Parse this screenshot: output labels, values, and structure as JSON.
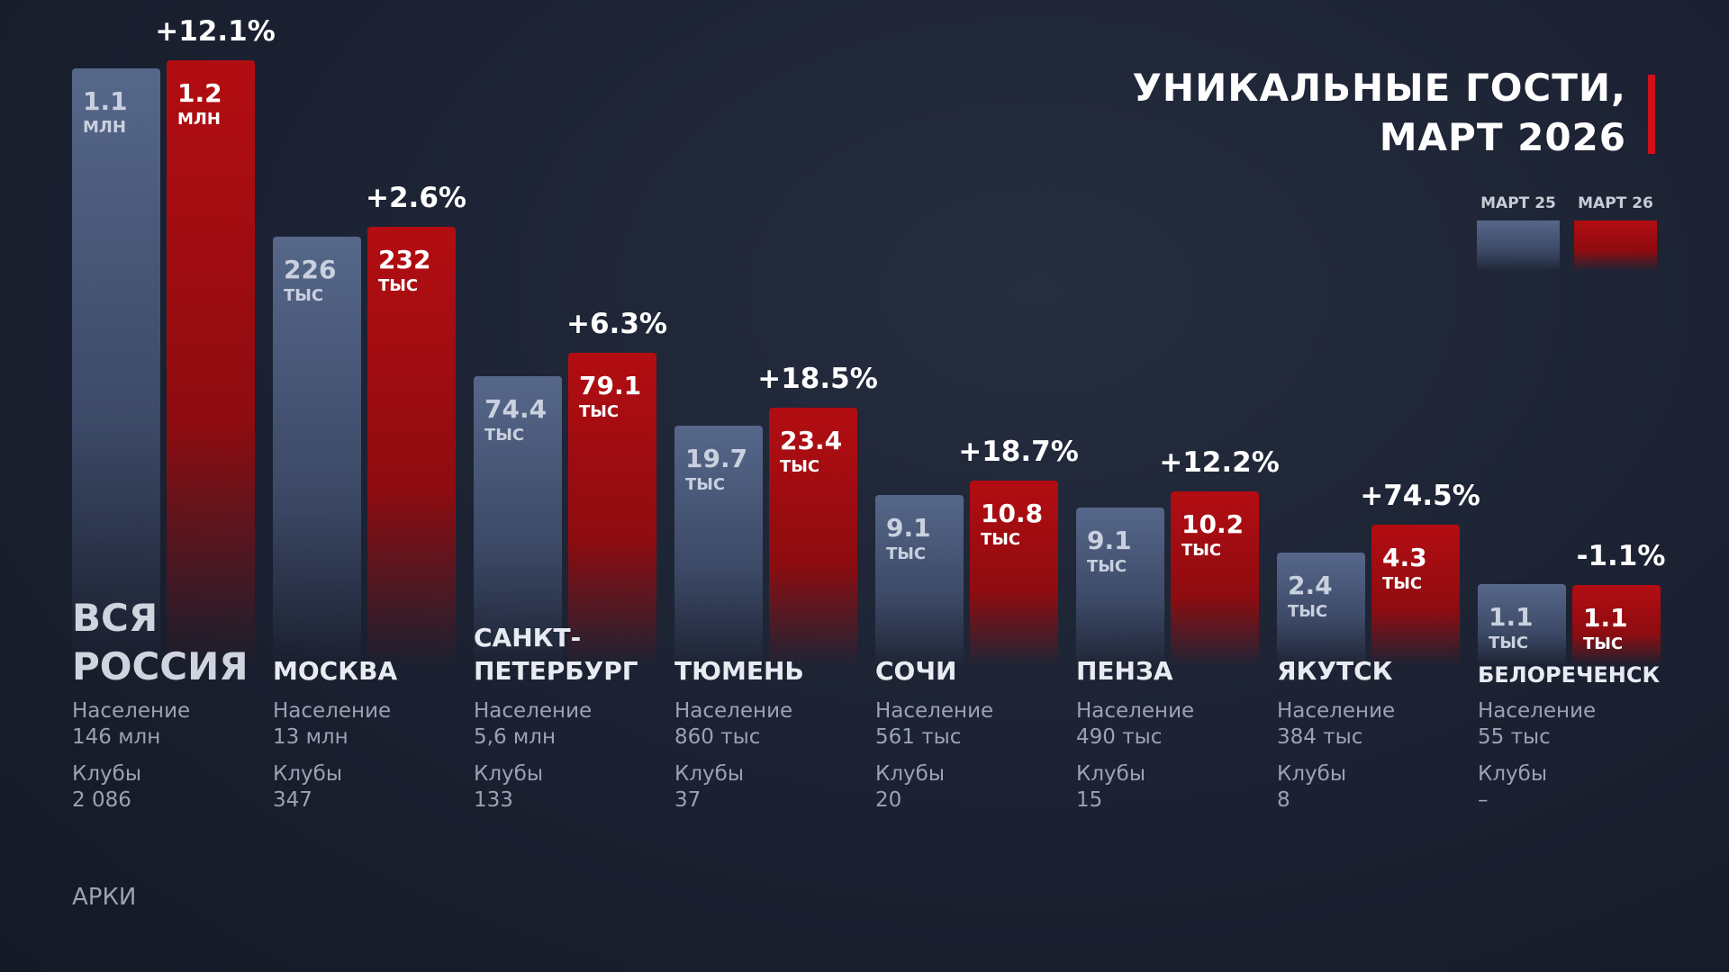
{
  "title": "УНИКАЛЬНЫЕ ГОСТИ, МАРТ 2026",
  "legend": [
    "МАРТ 25",
    "МАРТ 26"
  ],
  "labels": {
    "population": "Население",
    "clubs": "Клубы"
  },
  "footer": "АРКИ",
  "cities": [
    {
      "name": "ВСЯ РОССИЯ",
      "before": {
        "value": "1.1",
        "unit": "МЛН"
      },
      "after": {
        "value": "1.2",
        "unit": "МЛН"
      },
      "change": "+12.1%",
      "population": "146 млн",
      "clubs": "2 086"
    },
    {
      "name": "МОСКВА",
      "before": {
        "value": "226",
        "unit": "ТЫС"
      },
      "after": {
        "value": "232",
        "unit": "ТЫС"
      },
      "change": "+2.6%",
      "population": "13 млн",
      "clubs": "347"
    },
    {
      "name": "САНКТ-ПЕТЕРБУРГ",
      "before": {
        "value": "74.4",
        "unit": "ТЫС"
      },
      "after": {
        "value": "79.1",
        "unit": "ТЫС"
      },
      "change": "+6.3%",
      "population": "5,6 млн",
      "clubs": "133"
    },
    {
      "name": "ТЮМЕНЬ",
      "before": {
        "value": "19.7",
        "unit": "ТЫС"
      },
      "after": {
        "value": "23.4",
        "unit": "ТЫС"
      },
      "change": "+18.5%",
      "population": "860 тыс",
      "clubs": "37"
    },
    {
      "name": "СОЧИ",
      "before": {
        "value": "9.1",
        "unit": "ТЫС"
      },
      "after": {
        "value": "10.8",
        "unit": "ТЫС"
      },
      "change": "+18.7%",
      "population": "561 тыс",
      "clubs": "20"
    },
    {
      "name": "ПЕНЗА",
      "before": {
        "value": "9.1",
        "unit": "ТЫС"
      },
      "after": {
        "value": "10.2",
        "unit": "ТЫС"
      },
      "change": "+12.2%",
      "population": "490 тыс",
      "clubs": "15"
    },
    {
      "name": "ЯКУТСК",
      "before": {
        "value": "2.4",
        "unit": "ТЫС"
      },
      "after": {
        "value": "4.3",
        "unit": "ТЫС"
      },
      "change": "+74.5%",
      "population": "384 тыс",
      "clubs": "8"
    },
    {
      "name": "БЕЛОРЕЧЕНСК",
      "before": {
        "value": "1.1",
        "unit": "ТЫС"
      },
      "after": {
        "value": "1.1",
        "unit": "ТЫС"
      },
      "change": "-1.1%",
      "population": "55 тыс",
      "clubs": "–"
    }
  ]
}
